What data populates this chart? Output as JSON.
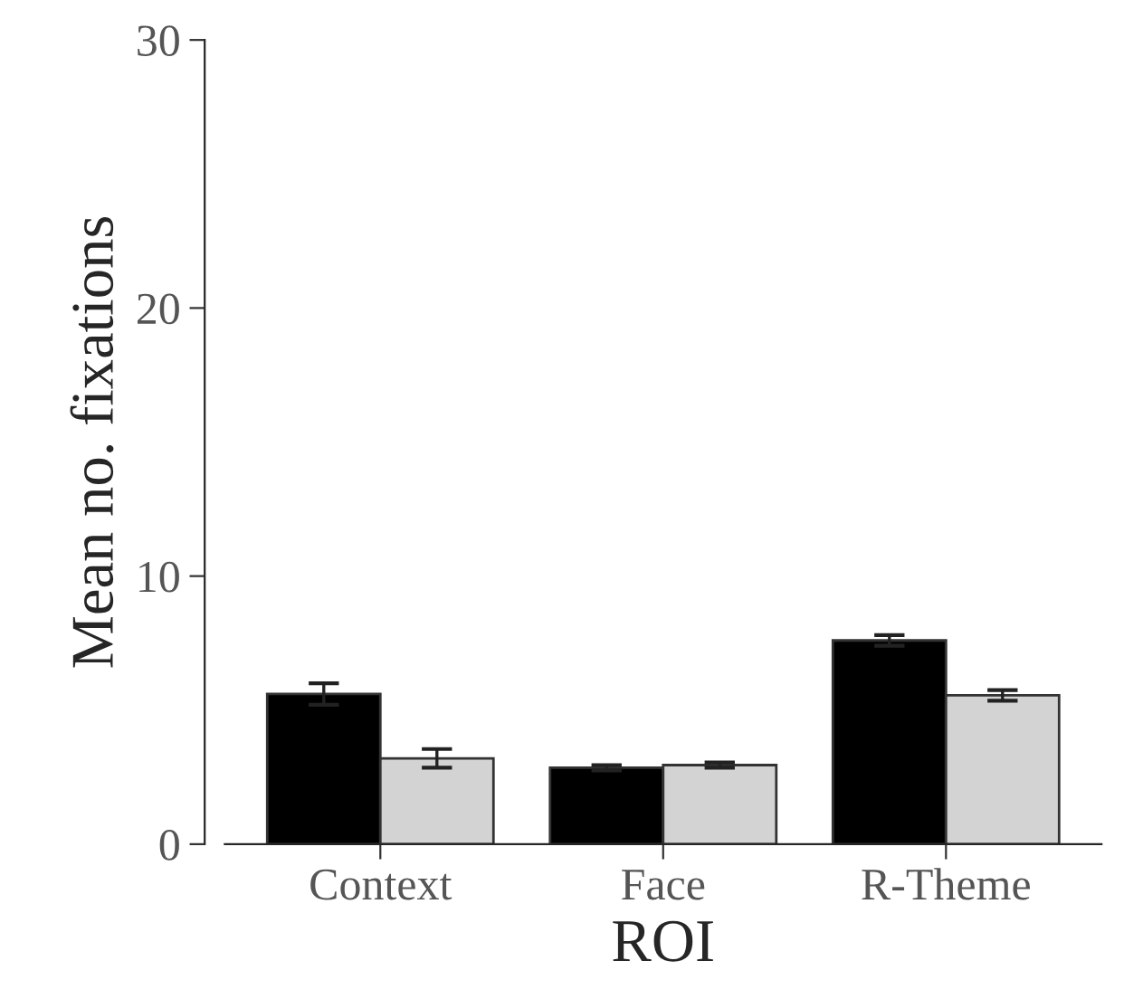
{
  "chart_data": {
    "type": "bar",
    "xlabel": "ROI",
    "ylabel": "Mean no. fixations",
    "categories": [
      "Context",
      "Face",
      "R-Theme"
    ],
    "series": [
      {
        "color": "#000000",
        "values": [
          5.6,
          2.85,
          7.6
        ],
        "errors": [
          0.4,
          0.1,
          0.2
        ]
      },
      {
        "color": "#d3d3d3",
        "values": [
          3.2,
          2.95,
          5.55
        ],
        "errors": [
          0.35,
          0.1,
          0.2
        ]
      }
    ],
    "ylim": [
      0,
      30
    ],
    "yticks": [
      0,
      10,
      20,
      30
    ],
    "grid": false,
    "legend": false
  }
}
